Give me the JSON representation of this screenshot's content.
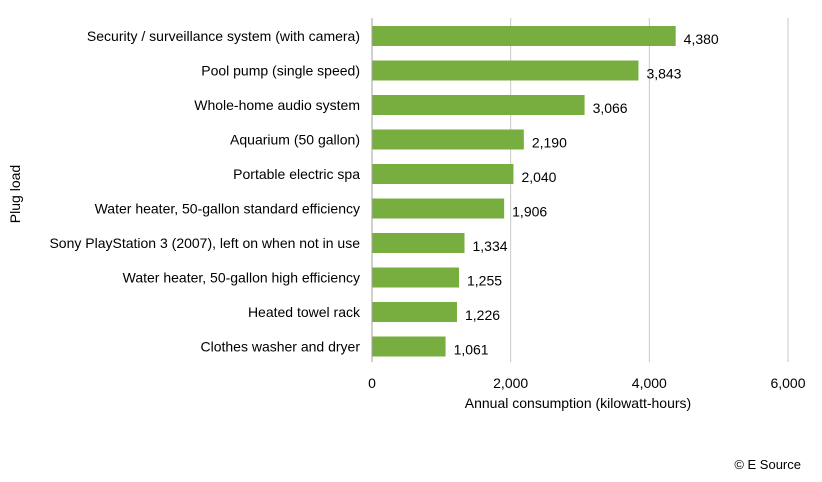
{
  "chart_data": {
    "type": "bar",
    "orientation": "horizontal",
    "categories": [
      "Security / surveillance system (with camera)",
      "Pool pump (single speed)",
      "Whole-home audio system",
      "Aquarium (50 gallon)",
      "Portable electric spa",
      "Water heater, 50-gallon standard efficiency",
      "Sony PlayStation 3 (2007), left on when not in use",
      "Water heater, 50-gallon high efficiency",
      "Heated towel rack",
      "Clothes washer and dryer"
    ],
    "values": [
      4380,
      3843,
      3066,
      2190,
      2040,
      1906,
      1334,
      1255,
      1226,
      1061
    ],
    "data_labels": [
      "4,380",
      "3,843",
      "3,066",
      "2,190",
      "2,040",
      "1,906",
      "1,334",
      "1,255",
      "1,226",
      "1,061"
    ],
    "xlabel": "Annual consumption (kilowatt-hours)",
    "ylabel": "Plug load",
    "xlim": [
      0,
      6000
    ],
    "xticks": [
      0,
      2000,
      4000,
      6000
    ],
    "xtick_labels": [
      "0",
      "2,000",
      "4,000",
      "6,000"
    ],
    "grid": "vertical",
    "bar_color": "#78AD3F",
    "gridline_color": "#C8C8C8"
  },
  "credit": "© E Source"
}
